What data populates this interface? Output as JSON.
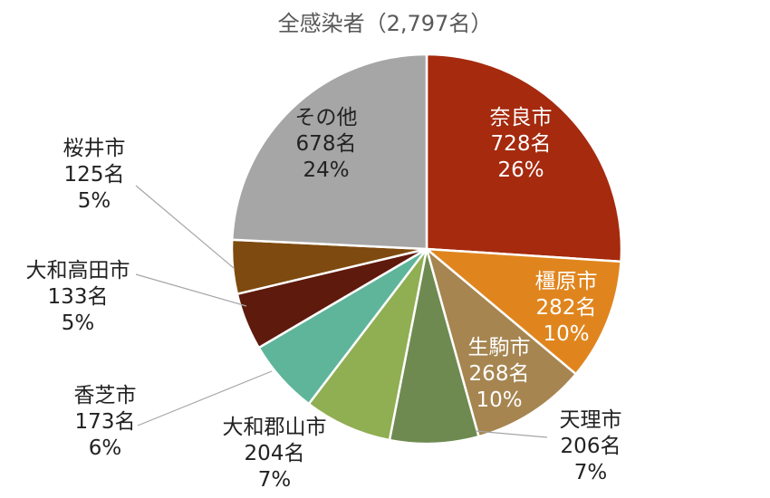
{
  "chart_data": {
    "type": "pie",
    "title": "全感染者（2,797名）",
    "slices": [
      {
        "name": "奈良市",
        "count": "728名",
        "pct": "26%",
        "value": 728,
        "color": "#A52A0E",
        "label_color": "#ffffff"
      },
      {
        "name": "橿原市",
        "count": "282名",
        "pct": "10%",
        "value": 282,
        "color": "#E0851E",
        "label_color": "#ffffff"
      },
      {
        "name": "生駒市",
        "count": "268名",
        "pct": "10%",
        "value": 268,
        "color": "#A68550",
        "label_color": "#ffffff"
      },
      {
        "name": "天理市",
        "count": "206名",
        "pct": "7%",
        "value": 206,
        "color": "#6E8A50",
        "label_color": "#222222"
      },
      {
        "name": "大和郡山市",
        "count": "204名",
        "pct": "7%",
        "value": 204,
        "color": "#90AE52",
        "label_color": "#222222"
      },
      {
        "name": "香芝市",
        "count": "173名",
        "pct": "6%",
        "value": 173,
        "color": "#5FB59A",
        "label_color": "#222222"
      },
      {
        "name": "大和高田市",
        "count": "133名",
        "pct": "5%",
        "value": 133,
        "color": "#5E1A0C",
        "label_color": "#222222"
      },
      {
        "name": "桜井市",
        "count": "125名",
        "pct": "5%",
        "value": 125,
        "color": "#7E4A0F",
        "label_color": "#222222"
      },
      {
        "name": "その他",
        "count": "678名",
        "pct": "24%",
        "value": 678,
        "color": "#A6A6A6",
        "label_color": "#222222"
      }
    ]
  }
}
